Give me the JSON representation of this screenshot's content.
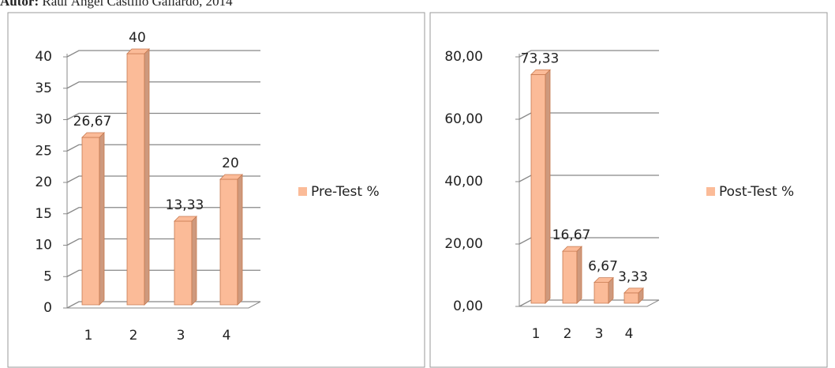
{
  "caption": {
    "label": "Autor:",
    "text": "Raúl Ángel Castillo Gallardo, 2014"
  },
  "chart_data": [
    {
      "type": "bar",
      "categories": [
        "1",
        "2",
        "3",
        "4"
      ],
      "series": [
        {
          "name": "Pre-Test %",
          "color": "#fbbb98",
          "values": [
            26.67,
            40,
            13.33,
            20
          ],
          "value_labels": [
            "26,67",
            "40",
            "13,33",
            "20"
          ]
        }
      ],
      "ylim": [
        0,
        40
      ],
      "yticks": [
        0,
        5,
        10,
        15,
        20,
        25,
        30,
        35,
        40
      ],
      "grid": true,
      "legend": "right"
    },
    {
      "type": "bar",
      "categories": [
        "1",
        "2",
        "3",
        "4"
      ],
      "series": [
        {
          "name": "Post-Test %",
          "color": "#fbbb98",
          "values": [
            73.33,
            16.67,
            6.67,
            3.33
          ],
          "value_labels": [
            "73,33",
            "16,67",
            "6,67",
            "3,33"
          ]
        }
      ],
      "ylim": [
        0,
        80
      ],
      "yticks": [
        {
          "value": 0,
          "label": "0,00"
        },
        {
          "value": 20,
          "label": "20,00"
        },
        {
          "value": 40,
          "label": "40,00"
        },
        {
          "value": 60,
          "label": "60,00"
        },
        {
          "value": 80,
          "label": "80,00"
        }
      ],
      "grid": true,
      "legend": "right"
    }
  ]
}
